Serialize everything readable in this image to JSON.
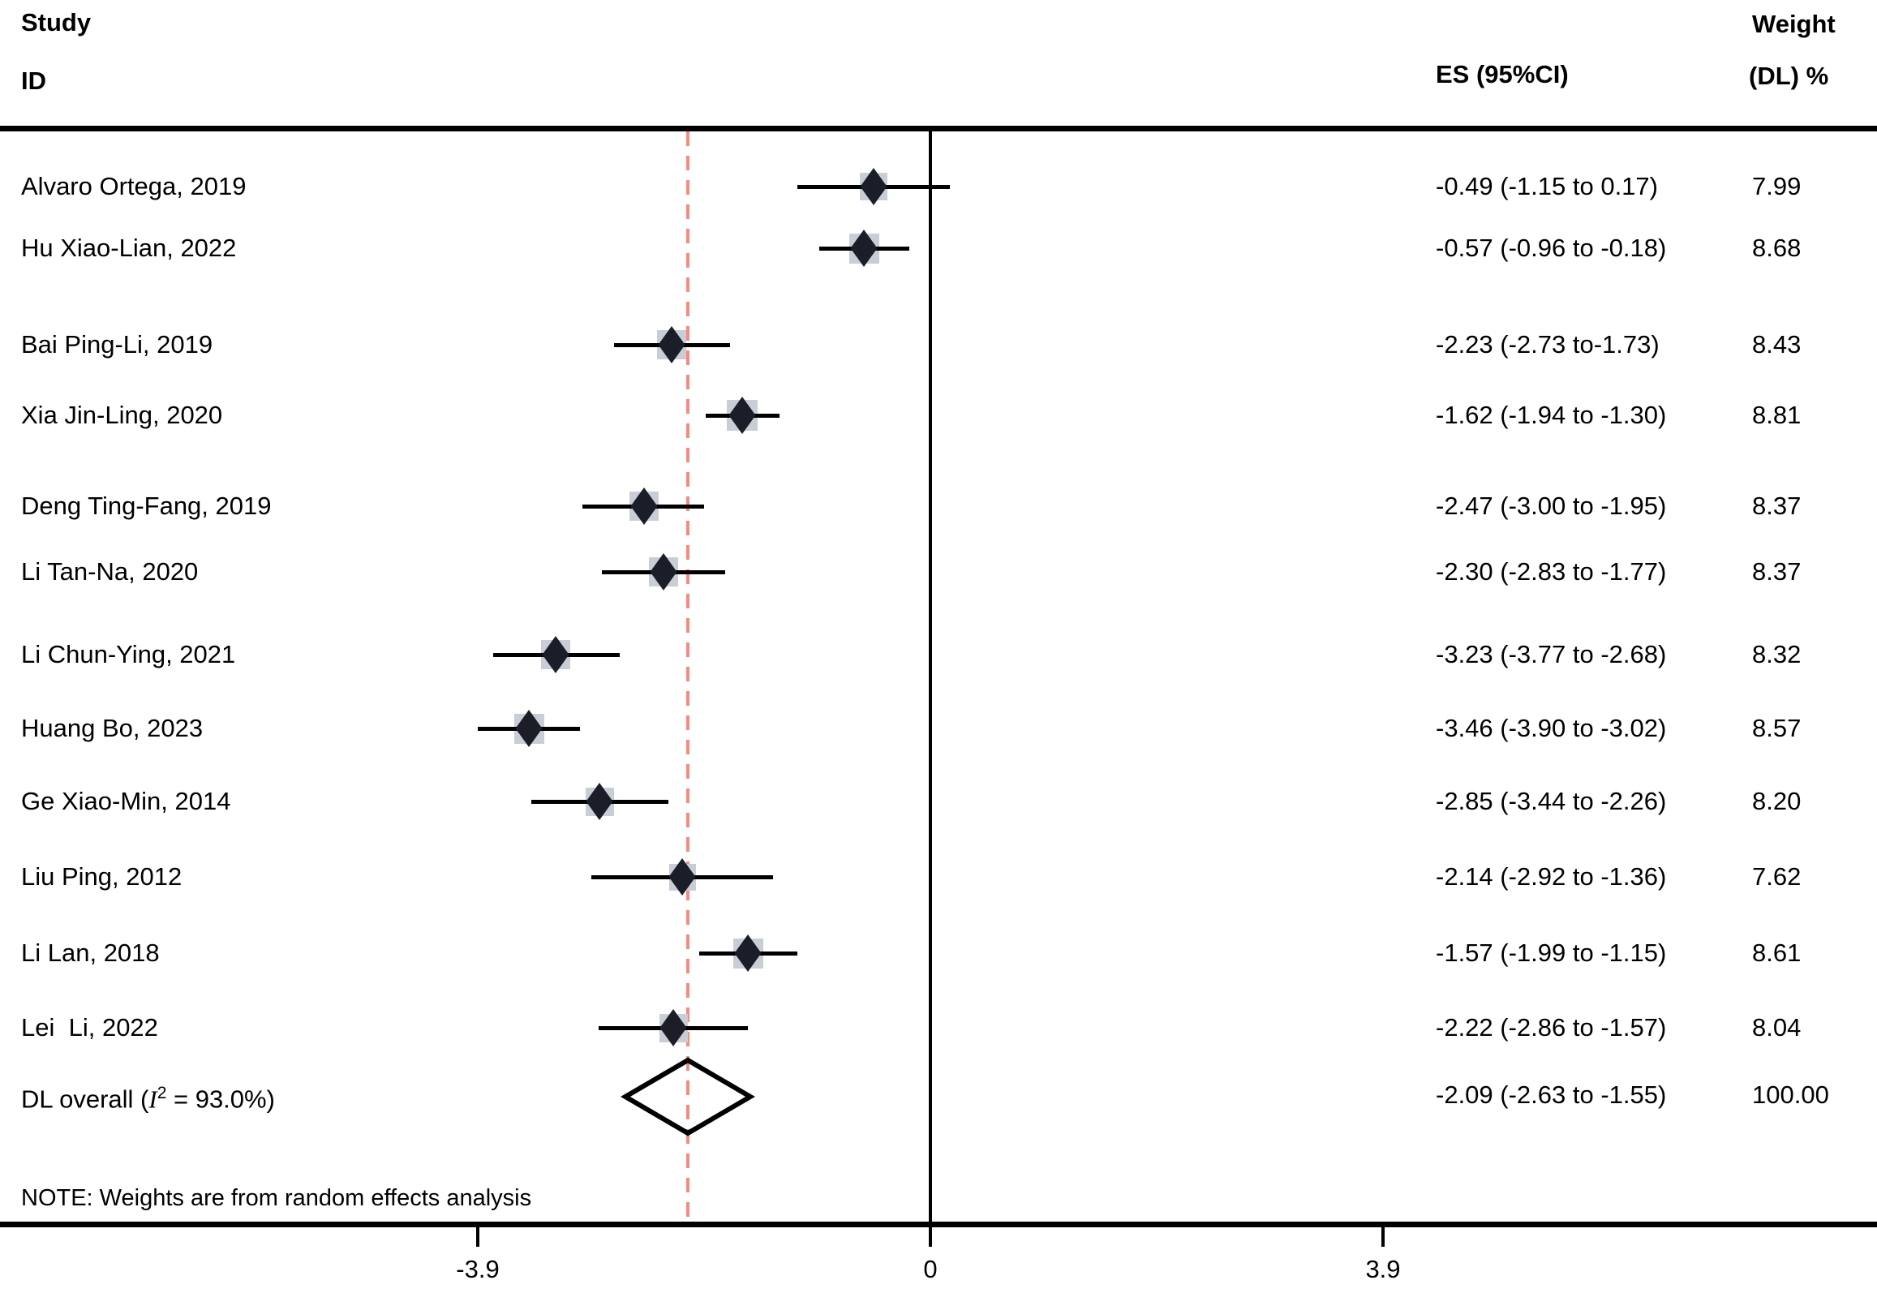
{
  "header": {
    "col1_line1": "Study",
    "col1_line2": "ID",
    "es_col": "ES (95%CI)",
    "weight_line1": "Weight",
    "weight_line2": "(DL) %"
  },
  "chart_data": {
    "type": "forest",
    "title": "",
    "xlabel": "",
    "x_axis": {
      "ticks": [
        {
          "value": -3.9,
          "label": "-3.9"
        },
        {
          "value": 0,
          "label": "0"
        },
        {
          "value": 3.9,
          "label": "3.9"
        }
      ],
      "null_reference_value": 0,
      "overall_reference_value": -2.09
    },
    "studies": [
      {
        "name": "Alvaro Ortega, 2019",
        "es": -0.49,
        "lo": -1.15,
        "hi": 0.17,
        "es_label": "-0.49 (-1.15 to 0.17)",
        "weight": 7.99,
        "weight_label": "7.99"
      },
      {
        "name": "Hu Xiao-Lian, 2022",
        "es": -0.57,
        "lo": -0.96,
        "hi": -0.18,
        "es_label": "-0.57 (-0.96 to -0.18)",
        "weight": 8.68,
        "weight_label": "8.68"
      },
      {
        "name": "Bai Ping-Li, 2019",
        "es": -2.23,
        "lo": -2.73,
        "hi": -1.73,
        "es_label": "-2.23 (-2.73 to-1.73)",
        "weight": 8.43,
        "weight_label": "8.43"
      },
      {
        "name": "Xia Jin-Ling, 2020",
        "es": -1.62,
        "lo": -1.94,
        "hi": -1.3,
        "es_label": "-1.62 (-1.94 to -1.30)",
        "weight": 8.81,
        "weight_label": "8.81"
      },
      {
        "name": "Deng Ting-Fang, 2019",
        "es": -2.47,
        "lo": -3.0,
        "hi": -1.95,
        "es_label": "-2.47 (-3.00 to -1.95)",
        "weight": 8.37,
        "weight_label": "8.37"
      },
      {
        "name": "Li Tan-Na, 2020",
        "es": -2.3,
        "lo": -2.83,
        "hi": -1.77,
        "es_label": "-2.30 (-2.83 to -1.77)",
        "weight": 8.37,
        "weight_label": "8.37"
      },
      {
        "name": "Li Chun-Ying, 2021",
        "es": -3.23,
        "lo": -3.77,
        "hi": -2.68,
        "es_label": "-3.23 (-3.77 to -2.68)",
        "weight": 8.32,
        "weight_label": "8.32"
      },
      {
        "name": "Huang Bo, 2023",
        "es": -3.46,
        "lo": -3.9,
        "hi": -3.02,
        "es_label": "-3.46 (-3.90 to -3.02)",
        "weight": 8.57,
        "weight_label": "8.57"
      },
      {
        "name": "Ge Xiao-Min, 2014",
        "es": -2.85,
        "lo": -3.44,
        "hi": -2.26,
        "es_label": "-2.85 (-3.44 to -2.26)",
        "weight": 8.2,
        "weight_label": "8.20"
      },
      {
        "name": "Liu Ping, 2012",
        "es": -2.14,
        "lo": -2.92,
        "hi": -1.36,
        "es_label": "-2.14 (-2.92 to -1.36)",
        "weight": 7.62,
        "weight_label": "7.62"
      },
      {
        "name": "Li Lan, 2018",
        "es": -1.57,
        "lo": -1.99,
        "hi": -1.15,
        "es_label": "-1.57 (-1.99 to -1.15)",
        "weight": 8.61,
        "weight_label": "8.61"
      },
      {
        "name": "Lei  Li, 2022",
        "es": -2.22,
        "lo": -2.86,
        "hi": -1.57,
        "es_label": "-2.22 (-2.86 to -1.57)",
        "weight": 8.04,
        "weight_label": "8.04"
      }
    ],
    "overall": {
      "label_parts": {
        "prefix": "DL overall (",
        "i": "I",
        "sup": "2",
        "suffix": " = 93.0%)"
      },
      "es": -2.09,
      "lo": -2.63,
      "hi": -1.55,
      "es_label": "-2.09 (-2.63 to -1.55)",
      "weight": 100.0,
      "weight_label": "100.00"
    },
    "note": "NOTE: Weights are from random effects analysis"
  },
  "colors": {
    "weight_square": "#c9cdd6",
    "es_marker": "#1b1e28",
    "overall_diamond_border": "#000000",
    "reference_dashed": "#f58a80",
    "rules_and_text": "#000000"
  }
}
